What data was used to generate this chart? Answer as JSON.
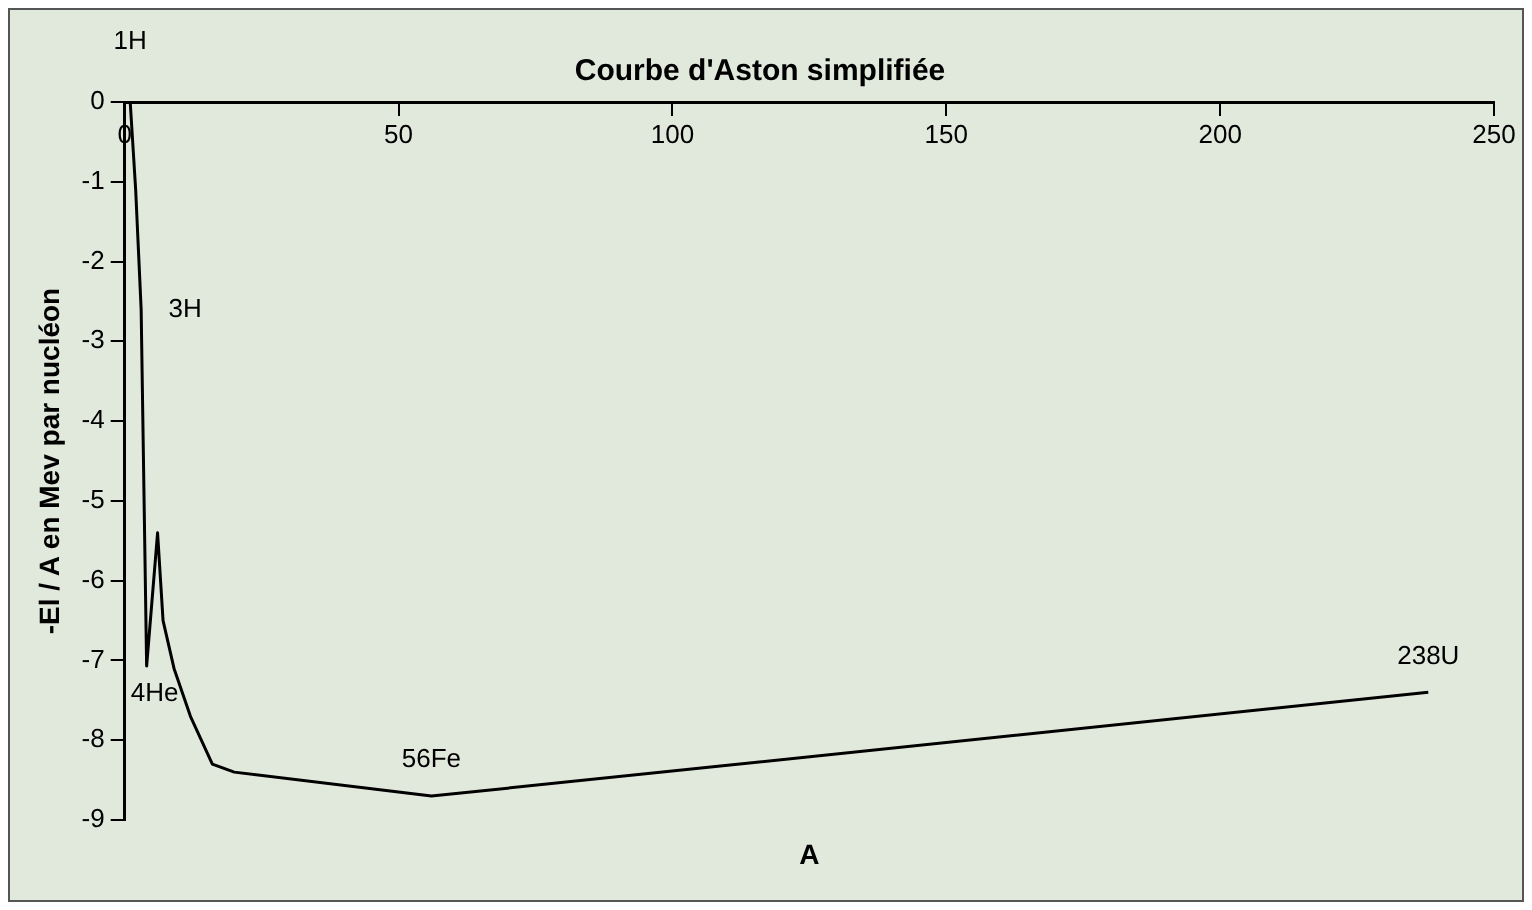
{
  "chart_data": {
    "type": "line",
    "title": "Courbe d'Aston simplifiée",
    "xlabel": "A",
    "ylabel": "-El / A en Mev par nucléon",
    "x": [
      1,
      2,
      3,
      4,
      6,
      7,
      9,
      12,
      16,
      20,
      56,
      238
    ],
    "series": [
      {
        "color": "#000000",
        "values": [
          0,
          -1.1,
          -2.6,
          -7.07,
          -5.4,
          -6.5,
          -7.1,
          -7.7,
          -8.3,
          -8.4,
          -8.7,
          -7.4
        ]
      }
    ],
    "xlim": [
      0,
      250
    ],
    "xticks": [
      0,
      50,
      100,
      150,
      200,
      250
    ],
    "ylim": [
      -9,
      0
    ],
    "yticks": [
      -9,
      -8,
      -7,
      -6,
      -5,
      -4,
      -3,
      -2,
      -1,
      0
    ],
    "grid": false,
    "legend": false,
    "marker": "none",
    "line_style": "solid",
    "annotations": [
      {
        "text": "1H",
        "x": 1,
        "y": 0
      },
      {
        "text": "3H",
        "x": 3,
        "y": -2.6
      },
      {
        "text": "4He",
        "x": 4,
        "y": -7.07
      },
      {
        "text": "56Fe",
        "x": 56,
        "y": -8.7
      },
      {
        "text": "238U",
        "x": 238,
        "y": -7.4
      }
    ]
  }
}
